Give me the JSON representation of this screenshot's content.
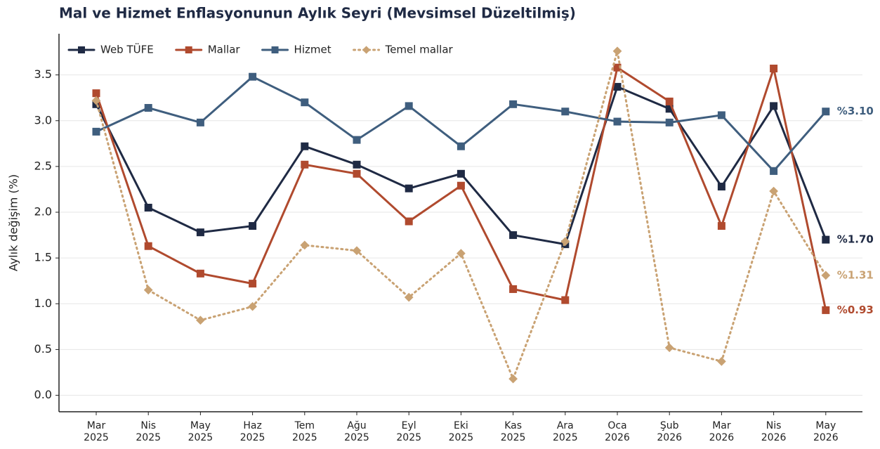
{
  "chart_data": {
    "type": "line",
    "title": "Mal ve Hizmet Enflasyonunun Aylık Seyri (Mevsimsel Düzeltilmiş)",
    "ylabel": "Aylık değişim (%)",
    "categories": [
      "Mar 2025",
      "Nis 2025",
      "May 2025",
      "Haz 2025",
      "Tem 2025",
      "Ağu 2025",
      "Eyl 2025",
      "Eki 2025",
      "Kas 2025",
      "Ara 2025",
      "Oca 2026",
      "Şub 2026",
      "Mar 2026",
      "Nis 2026",
      "May 2026"
    ],
    "ylim": [
      -0.18,
      3.95
    ],
    "yticks": [
      {
        "value": 0,
        "label": "0.0"
      },
      0.5,
      {
        "value": 1,
        "label": "1.0"
      },
      1.5,
      {
        "value": 2,
        "label": "2.0"
      },
      2.5,
      {
        "value": 3,
        "label": "3.0"
      },
      3.5
    ],
    "grid": true,
    "legend": "upper left",
    "series": [
      {
        "name": "Web TÜFE",
        "color": "#1f2a44",
        "marker": "square",
        "style": "solid",
        "values": [
          3.18,
          2.05,
          1.78,
          1.85,
          2.72,
          2.52,
          2.26,
          2.42,
          1.75,
          1.65,
          3.37,
          3.13,
          2.28,
          3.16,
          1.7
        ],
        "value_labels": [
          null,
          null,
          null,
          null,
          null,
          null,
          null,
          null,
          null,
          null,
          null,
          null,
          null,
          null,
          "%1.70"
        ]
      },
      {
        "name": "Mallar",
        "color": "#b04a2e",
        "marker": "square",
        "style": "solid",
        "values": [
          3.3,
          1.63,
          1.33,
          1.22,
          2.52,
          2.42,
          1.9,
          2.29,
          1.16,
          1.04,
          3.58,
          3.21,
          1.85,
          3.57,
          0.93
        ],
        "value_labels": [
          null,
          null,
          null,
          null,
          null,
          null,
          null,
          null,
          null,
          null,
          null,
          null,
          null,
          null,
          "%0.93"
        ]
      },
      {
        "name": "Hizmet",
        "color": "#3f5e7e",
        "marker": "square",
        "style": "solid",
        "values": [
          2.88,
          3.14,
          2.98,
          3.48,
          3.2,
          2.79,
          3.16,
          2.72,
          3.18,
          3.1,
          2.99,
          2.98,
          3.06,
          2.45,
          3.1
        ],
        "value_labels": [
          null,
          null,
          null,
          null,
          null,
          null,
          null,
          null,
          null,
          null,
          null,
          null,
          null,
          null,
          "%3.10"
        ]
      },
      {
        "name": "Temel mallar",
        "color": "#c9a273",
        "marker": "diamond",
        "style": "dotted",
        "values": [
          3.22,
          1.15,
          0.82,
          0.97,
          1.64,
          1.58,
          1.07,
          1.55,
          0.18,
          1.68,
          3.76,
          0.52,
          0.37,
          2.23,
          1.31
        ],
        "value_labels": [
          null,
          null,
          null,
          null,
          null,
          null,
          null,
          null,
          null,
          null,
          null,
          null,
          null,
          null,
          "%1.31"
        ]
      }
    ]
  }
}
